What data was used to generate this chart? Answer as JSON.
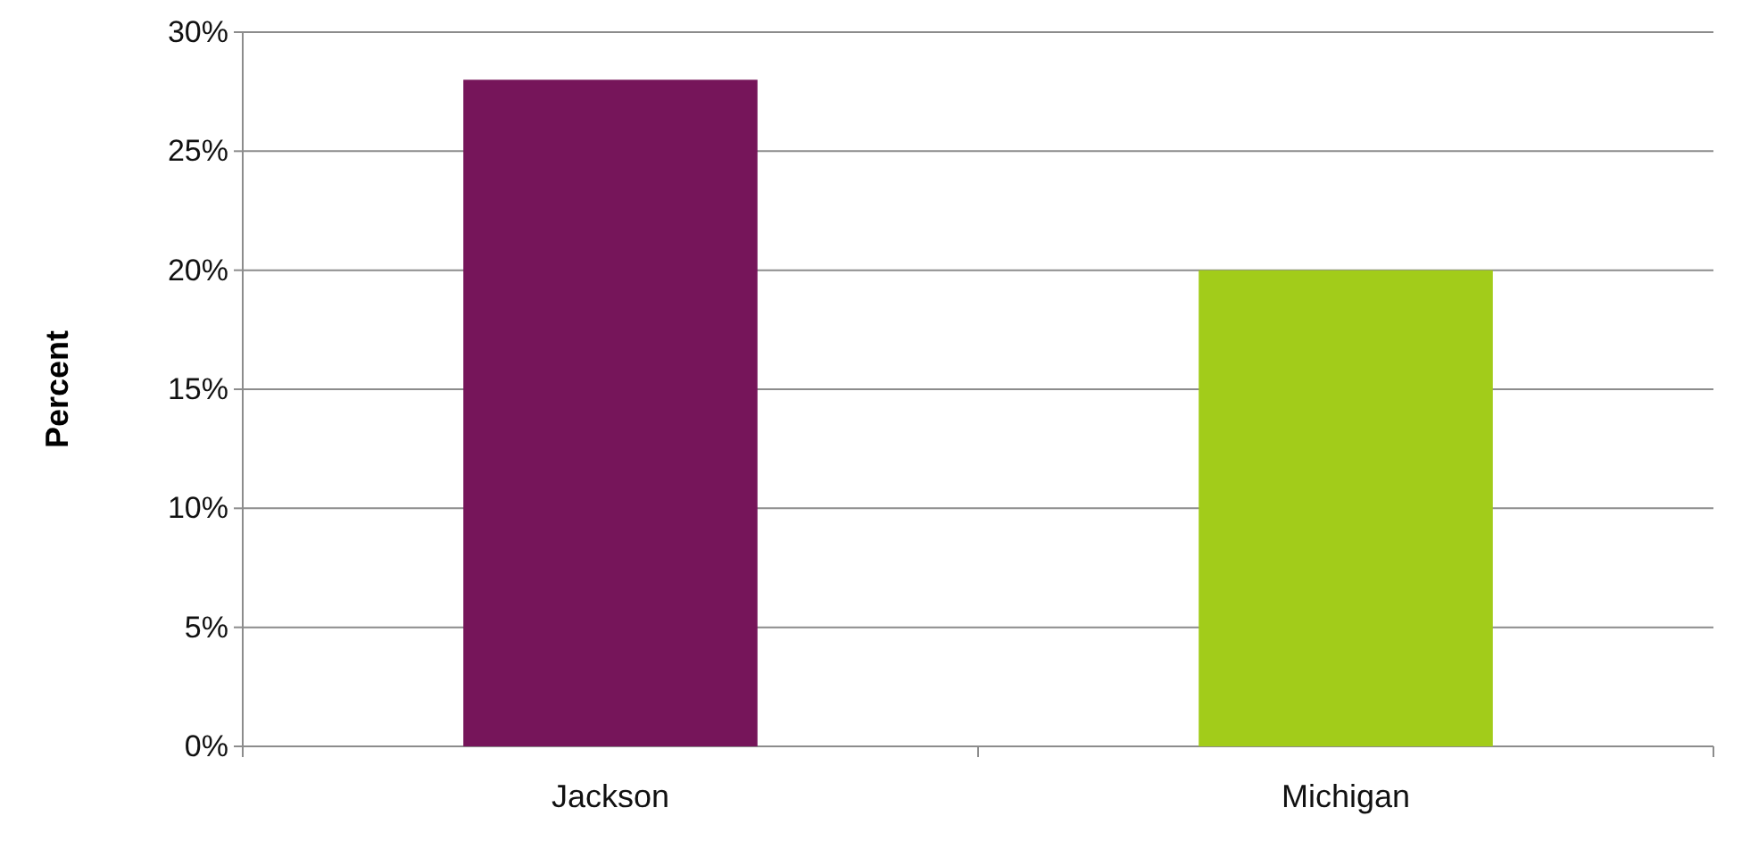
{
  "chart_data": {
    "type": "bar",
    "ylabel": "Percent",
    "categories": [
      "Jackson",
      "Michigan"
    ],
    "values": [
      28,
      20
    ],
    "colors": [
      "#76155a",
      "#a2cc1a"
    ],
    "ylim": [
      0,
      30
    ],
    "yticks": [
      {
        "value": 0,
        "label": "0%"
      },
      {
        "value": 5,
        "label": "5%"
      },
      {
        "value": 10,
        "label": "10%"
      },
      {
        "value": 15,
        "label": "15%"
      },
      {
        "value": 20,
        "label": "20%"
      },
      {
        "value": 25,
        "label": "25%"
      },
      {
        "value": 30,
        "label": "30%"
      }
    ],
    "grid": "y"
  }
}
